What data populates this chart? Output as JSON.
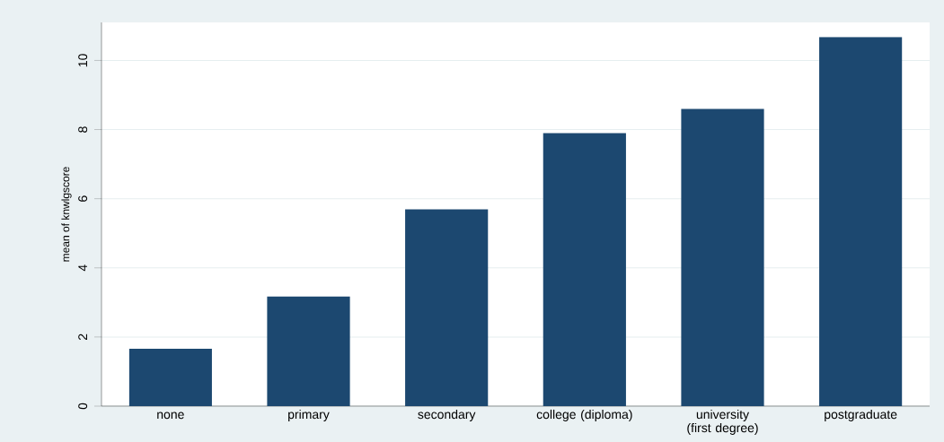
{
  "chart_data": {
    "type": "bar",
    "ylabel": "mean of knwlgscore",
    "categories": [
      "none",
      "primary",
      "secondary",
      "college (diploma)",
      "university (first degree)",
      "postgraduate"
    ],
    "values": [
      1.66,
      3.17,
      5.69,
      7.9,
      8.6,
      10.68
    ],
    "color": "#1c4870",
    "ylim": [
      0,
      11.1
    ],
    "yticks": [
      0,
      2,
      4,
      6,
      8,
      10
    ],
    "grid": "y"
  }
}
